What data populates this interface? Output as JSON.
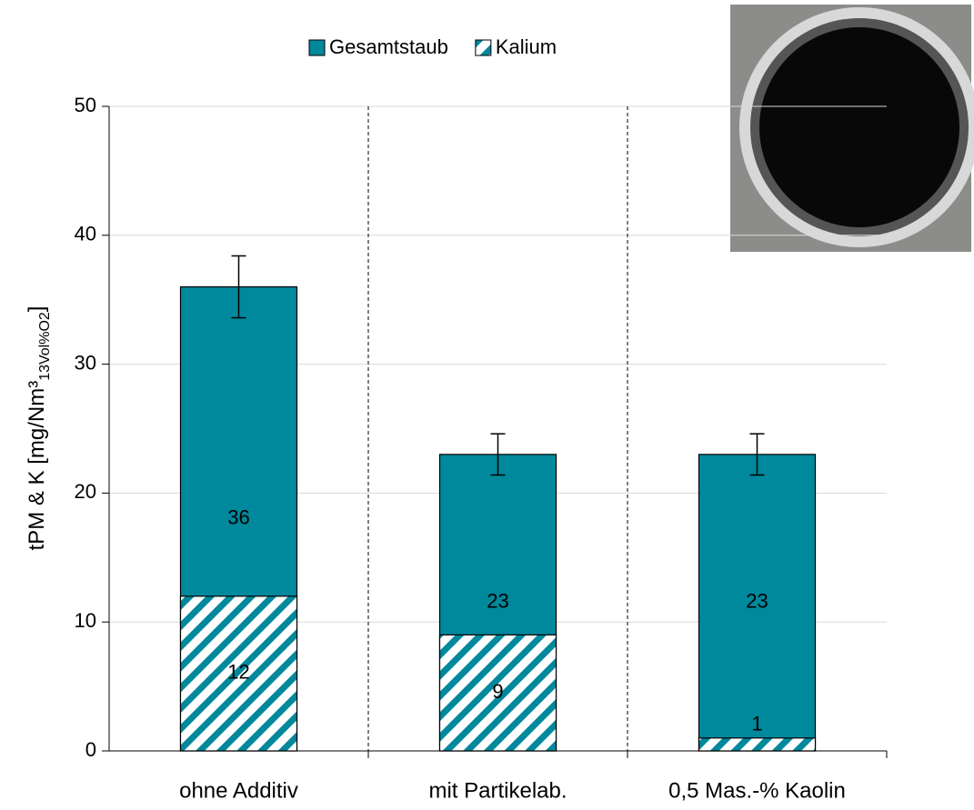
{
  "chart_data": {
    "type": "bar",
    "categories": [
      "ohne Additiv",
      "mit Partikelab.",
      "0,5 Mas.-% Kaolin"
    ],
    "series": [
      {
        "name": "Gesamtstaub",
        "color": "#00889c",
        "values": [
          36,
          23,
          23
        ],
        "errors": [
          2.4,
          1.6,
          1.6
        ]
      },
      {
        "name": "Kalium",
        "color": "#00889c",
        "hatch": true,
        "values": [
          12,
          9,
          1
        ]
      }
    ],
    "ylabel": "tPM & K [mg/Nm³",
    "ylabel_sub": "13Vol%O2",
    "ylabel_end": "]",
    "ylim": [
      0,
      50
    ],
    "yticks": [
      0,
      10,
      20,
      30,
      40,
      50
    ],
    "grid": true,
    "legend": "top"
  }
}
